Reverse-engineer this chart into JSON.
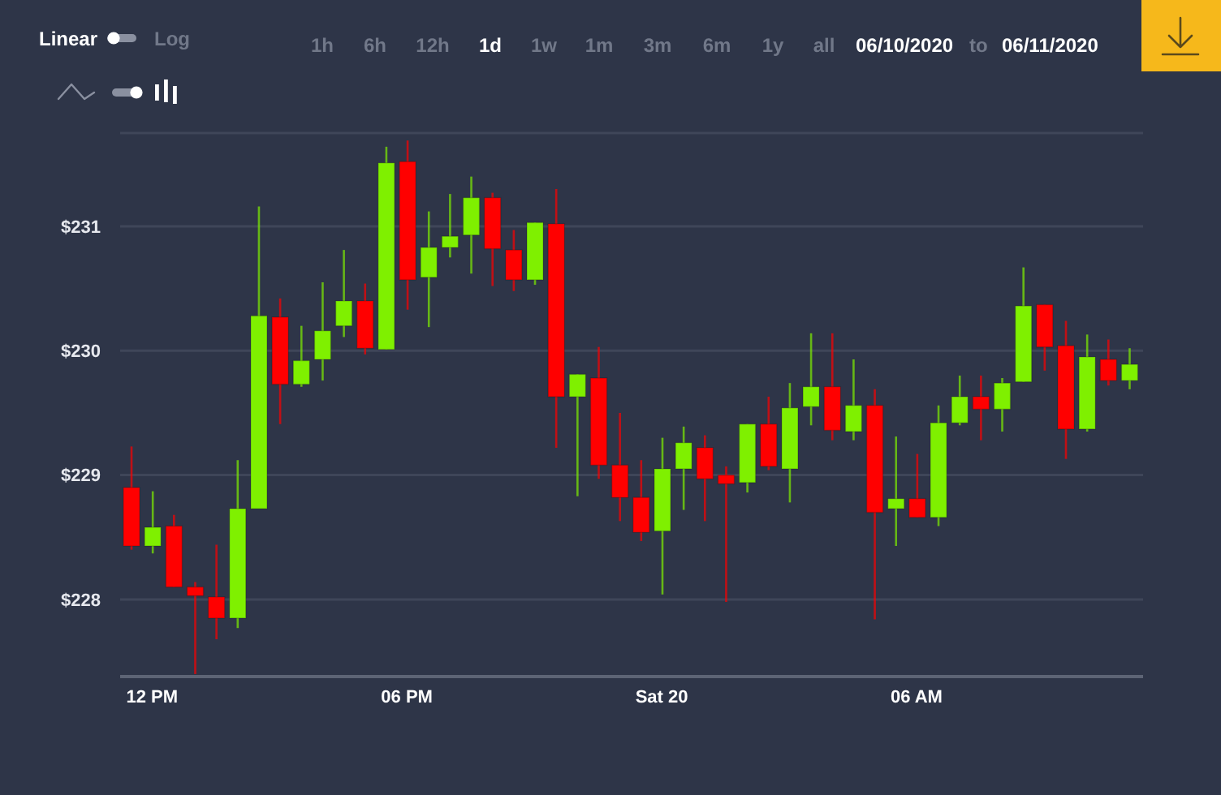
{
  "chart_data": {
    "type": "candlestick",
    "x": [
      "2020-06-19T11:30",
      "2020-06-19T12:00",
      "2020-06-19T12:30",
      "2020-06-19T13:00",
      "2020-06-19T13:30",
      "2020-06-19T14:00",
      "2020-06-19T14:30",
      "2020-06-19T15:00",
      "2020-06-19T15:30",
      "2020-06-19T16:00",
      "2020-06-19T16:30",
      "2020-06-19T17:00",
      "2020-06-19T17:30",
      "2020-06-19T18:00",
      "2020-06-19T18:30",
      "2020-06-19T19:00",
      "2020-06-19T19:30",
      "2020-06-19T20:00",
      "2020-06-19T20:30",
      "2020-06-19T21:00",
      "2020-06-19T21:30",
      "2020-06-19T22:00",
      "2020-06-19T22:30",
      "2020-06-19T23:00",
      "2020-06-19T23:30",
      "2020-06-20T00:00",
      "2020-06-20T00:30",
      "2020-06-20T01:00",
      "2020-06-20T01:30",
      "2020-06-20T02:00",
      "2020-06-20T02:30",
      "2020-06-20T03:00",
      "2020-06-20T03:30",
      "2020-06-20T04:00",
      "2020-06-20T04:30",
      "2020-06-20T05:00",
      "2020-06-20T05:30",
      "2020-06-20T06:00",
      "2020-06-20T06:30",
      "2020-06-20T07:00",
      "2020-06-20T07:30",
      "2020-06-20T08:00",
      "2020-06-20T08:30",
      "2020-06-20T09:00",
      "2020-06-20T09:30",
      "2020-06-20T10:00",
      "2020-06-20T10:30",
      "2020-06-20T11:00"
    ],
    "ohlc": [
      [
        228.9,
        229.23,
        228.4,
        228.43
      ],
      [
        228.43,
        228.87,
        228.37,
        228.58
      ],
      [
        228.59,
        228.68,
        228.1,
        228.1
      ],
      [
        228.1,
        228.14,
        227.4,
        228.03
      ],
      [
        228.02,
        228.44,
        227.68,
        227.85
      ],
      [
        227.85,
        229.12,
        227.77,
        228.73
      ],
      [
        228.73,
        231.16,
        228.73,
        230.28
      ],
      [
        230.27,
        230.42,
        229.41,
        229.73
      ],
      [
        229.73,
        230.2,
        229.71,
        229.92
      ],
      [
        229.93,
        230.55,
        229.76,
        230.16
      ],
      [
        230.2,
        230.81,
        230.11,
        230.4
      ],
      [
        230.4,
        230.54,
        229.97,
        230.02
      ],
      [
        230.01,
        231.64,
        230.01,
        231.51
      ],
      [
        231.52,
        231.69,
        230.33,
        230.57
      ],
      [
        230.59,
        231.12,
        230.19,
        230.83
      ],
      [
        230.83,
        231.26,
        230.75,
        230.92
      ],
      [
        230.93,
        231.4,
        230.62,
        231.23
      ],
      [
        231.23,
        231.27,
        230.52,
        230.82
      ],
      [
        230.81,
        230.97,
        230.48,
        230.57
      ],
      [
        230.57,
        231.03,
        230.53,
        231.03
      ],
      [
        231.02,
        231.3,
        229.22,
        229.63
      ],
      [
        229.63,
        229.81,
        228.83,
        229.81
      ],
      [
        229.78,
        230.03,
        228.97,
        229.08
      ],
      [
        229.08,
        229.5,
        228.63,
        228.82
      ],
      [
        228.82,
        229.12,
        228.47,
        228.54
      ],
      [
        228.55,
        229.3,
        228.04,
        229.05
      ],
      [
        229.05,
        229.39,
        228.72,
        229.26
      ],
      [
        229.22,
        229.32,
        228.63,
        228.97
      ],
      [
        229.0,
        229.07,
        227.98,
        228.93
      ],
      [
        228.94,
        229.41,
        228.86,
        229.41
      ],
      [
        229.41,
        229.63,
        229.04,
        229.07
      ],
      [
        229.05,
        229.74,
        228.78,
        229.54
      ],
      [
        229.55,
        230.14,
        229.4,
        229.71
      ],
      [
        229.71,
        230.14,
        229.28,
        229.36
      ],
      [
        229.35,
        229.93,
        229.28,
        229.56
      ],
      [
        229.56,
        229.69,
        227.84,
        228.7
      ],
      [
        228.73,
        229.31,
        228.43,
        228.81
      ],
      [
        228.81,
        229.17,
        228.66,
        228.66
      ],
      [
        228.66,
        229.56,
        228.59,
        229.42
      ],
      [
        229.42,
        229.8,
        229.4,
        229.63
      ],
      [
        229.63,
        229.8,
        229.28,
        229.53
      ],
      [
        229.53,
        229.78,
        229.35,
        229.74
      ],
      [
        229.75,
        230.67,
        229.75,
        230.36
      ],
      [
        230.37,
        230.37,
        229.84,
        230.03
      ],
      [
        230.04,
        230.24,
        229.13,
        229.37
      ],
      [
        229.37,
        230.13,
        229.35,
        229.95
      ],
      [
        229.93,
        230.09,
        229.72,
        229.76
      ],
      [
        229.76,
        230.02,
        229.69,
        229.89
      ]
    ],
    "colors": [
      "#ff0000",
      "#7ff000",
      "#ff0000",
      "#ff0000",
      "#ff0000",
      "#7ff000",
      "#7ff000",
      "#ff0000",
      "#7ff000",
      "#7ff000",
      "#7ff000",
      "#ff0000",
      "#7ff000",
      "#ff0000",
      "#7ff000",
      "#7ff000",
      "#7ff000",
      "#ff0000",
      "#ff0000",
      "#7ff000",
      "#ff0000",
      "#7ff000",
      "#ff0000",
      "#ff0000",
      "#ff0000",
      "#7ff000",
      "#7ff000",
      "#ff0000",
      "#ff0000",
      "#7ff000",
      "#ff0000",
      "#7ff000",
      "#7ff000",
      "#ff0000",
      "#7ff000",
      "#ff0000",
      "#7ff000",
      "#ff0000",
      "#7ff000",
      "#7ff000",
      "#ff0000",
      "#7ff000",
      "#7ff000",
      "#ff0000",
      "#ff0000",
      "#7ff000",
      "#ff0000",
      "#7ff000"
    ],
    "xlim": [
      "2020-06-19T11:15",
      "2020-06-20T11:20"
    ],
    "xticks": [
      {
        "value": "2020-06-19T12:00",
        "label": "12 PM"
      },
      {
        "value": "2020-06-19T18:00",
        "label": "06 PM"
      },
      {
        "value": "2020-06-20T00:00",
        "label": "Sat 20"
      },
      {
        "value": "2020-06-20T06:00",
        "label": "06 AM"
      }
    ],
    "ylim": [
      227.38,
      231.75
    ],
    "yticks": [
      {
        "value": 228,
        "label": "$228"
      },
      {
        "value": 229,
        "label": "$229"
      },
      {
        "value": 230,
        "label": "$230"
      },
      {
        "value": 231,
        "label": "$231"
      }
    ],
    "grid": "y",
    "annotations": [
      "Linear",
      "Log",
      "1h",
      "6h",
      "12h",
      "1d",
      "1w",
      "1m",
      "3m",
      "6m",
      "1y",
      "all",
      "06/10/2020",
      "to",
      "06/11/2020"
    ]
  }
}
